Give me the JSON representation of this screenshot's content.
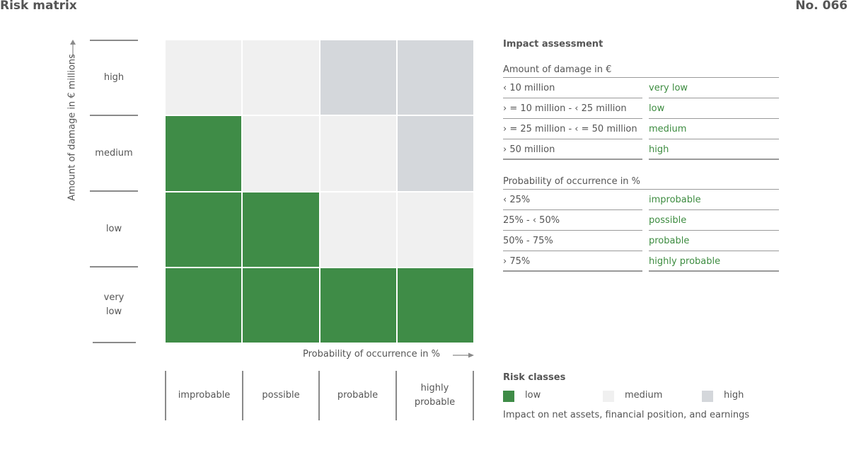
{
  "header": {
    "title": "Risk matrix",
    "number": "No. 066"
  },
  "colors": {
    "low": "#3f8c47",
    "medium": "#f0f0f0",
    "high": "#d4d7db",
    "accent_text": "#3d8c40"
  },
  "axes": {
    "y_title": "Amount of damage in € millions",
    "y_levels": [
      "high",
      "medium",
      "low",
      "very\nlow"
    ],
    "x_title": "Probability of occurrence in %",
    "x_levels": [
      "improbable",
      "possible",
      "probable",
      "highly\nprobable"
    ]
  },
  "matrix": {
    "rows": [
      [
        "medium",
        "medium",
        "high",
        "high"
      ],
      [
        "low",
        "medium",
        "medium",
        "high"
      ],
      [
        "low",
        "low",
        "medium",
        "medium"
      ],
      [
        "low",
        "low",
        "low",
        "low"
      ]
    ]
  },
  "impact_assessment": {
    "heading": "Impact assessment",
    "damage": {
      "title": "Amount of damage in €",
      "rows": [
        {
          "range": "‹ 10 million",
          "class": "very low"
        },
        {
          "range": "› = 10 million - ‹ 25 million",
          "class": "low"
        },
        {
          "range": "› = 25 million - ‹ = 50 million",
          "class": "medium"
        },
        {
          "range": "› 50 million",
          "class": "high"
        }
      ]
    },
    "probability": {
      "title": "Probability of occurrence in %",
      "rows": [
        {
          "range": "‹ 25%",
          "class": "improbable"
        },
        {
          "range": "25% - ‹ 50%",
          "class": "possible"
        },
        {
          "range": "50% - 75%",
          "class": "probable"
        },
        {
          "range": "› 75%",
          "class": "highly probable"
        }
      ]
    }
  },
  "risk_classes": {
    "heading": "Risk classes",
    "items": [
      {
        "label": "low",
        "key": "low"
      },
      {
        "label": "medium",
        "key": "medium"
      },
      {
        "label": "high",
        "key": "high"
      }
    ],
    "note": "Impact on net assets, financial position, and earnings"
  }
}
